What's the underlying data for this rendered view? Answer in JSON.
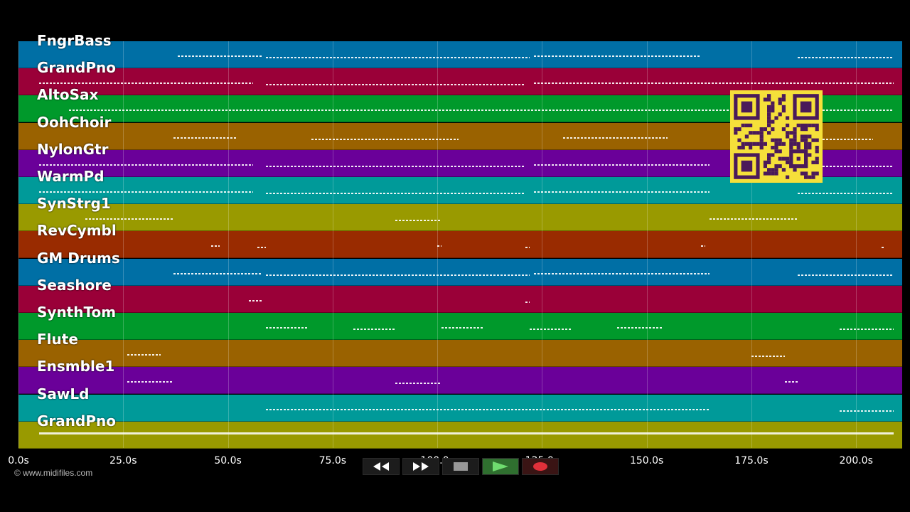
{
  "tracks": [
    {
      "name": "FngrBass",
      "color": "#006fa5"
    },
    {
      "name": "GrandPno",
      "color": "#9a0038"
    },
    {
      "name": "AltoSax",
      "color": "#00992b"
    },
    {
      "name": "OohChoir",
      "color": "#9a6200"
    },
    {
      "name": "NylonGtr",
      "color": "#6a0099"
    },
    {
      "name": "WarmPd",
      "color": "#009a99"
    },
    {
      "name": "SynStrg1",
      "color": "#999a00"
    },
    {
      "name": "RevCymbl",
      "color": "#992b00"
    },
    {
      "name": "GM Drums",
      "color": "#006fa5"
    },
    {
      "name": "Seashore",
      "color": "#9a0038"
    },
    {
      "name": "SynthTom",
      "color": "#00992b"
    },
    {
      "name": "Flute",
      "color": "#9a6200"
    },
    {
      "name": "Ensmble1",
      "color": "#6a0099"
    },
    {
      "name": "SawLd",
      "color": "#009a99"
    },
    {
      "name": "GrandPno",
      "color": "#999a00"
    }
  ],
  "timeline": {
    "ticks": [
      "0.0s",
      "25.0s",
      "50.0s",
      "75.0s",
      "100.0s",
      "125.0s",
      "150.0s",
      "175.0s",
      "200.0s"
    ],
    "tick_values": [
      0,
      25,
      50,
      75,
      100,
      125,
      150,
      175,
      200
    ],
    "max_seconds": 211
  },
  "copyright": "© www.midifiles.com",
  "transport": {
    "rewind": "rewind-icon",
    "fast_forward": "fast-forward-icon",
    "stop": "stop-icon",
    "play": "play-icon",
    "record": "record-icon"
  }
}
